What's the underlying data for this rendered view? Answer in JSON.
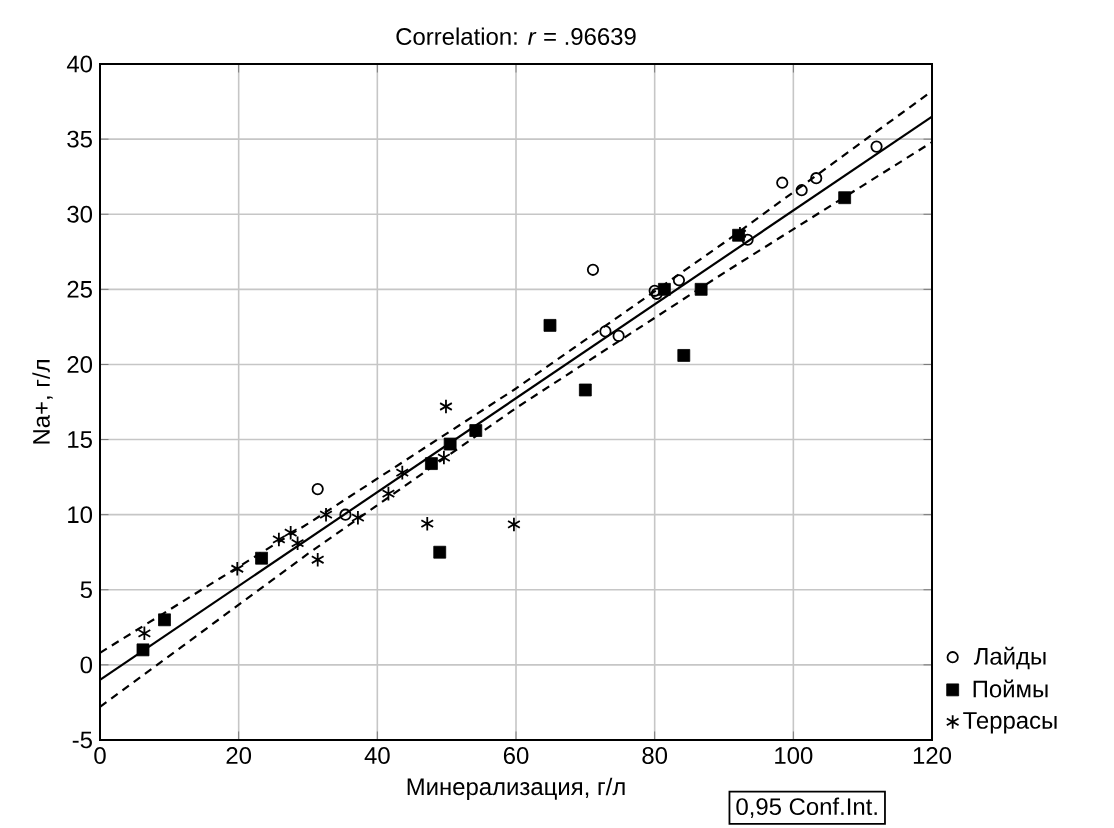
{
  "chart_data": {
    "type": "scatter",
    "title": "Correlation: *r* = .96639",
    "xlabel": "Минерализация, г/л",
    "ylabel": "Na+, г/л",
    "xlim": [
      0,
      120
    ],
    "xticks": [
      0,
      20,
      40,
      60,
      80,
      100,
      120
    ],
    "ylim": [
      -5,
      40
    ],
    "yticks": [
      -5,
      0,
      5,
      10,
      15,
      20,
      25,
      30,
      35,
      40
    ],
    "grid": true,
    "legend": "bottom right",
    "annotations": [
      "0,95 Conf.Int."
    ],
    "series": [
      {
        "name": "Лайды",
        "color": "#000000",
        "marker": "circle",
        "x": [
          31.4,
          35.4,
          71.1,
          80.0,
          80.3,
          83.5,
          72.9,
          74.8,
          98.4,
          101.2,
          103.3,
          112.0,
          93.4
        ],
        "values": [
          11.7,
          10.0,
          26.3,
          24.9,
          24.7,
          25.6,
          22.2,
          21.9,
          32.1,
          31.6,
          32.4,
          34.5,
          28.3
        ]
      },
      {
        "name": "Поймы",
        "color": "#000000",
        "marker": "square",
        "x": [
          6.2,
          9.3,
          23.3,
          49.0,
          47.8,
          50.5,
          54.2,
          64.9,
          70.0,
          84.2,
          86.7,
          81.4,
          92.1,
          107.4
        ],
        "values": [
          1.0,
          3.0,
          7.1,
          7.5,
          13.4,
          14.7,
          15.6,
          22.6,
          18.3,
          20.6,
          25.0,
          25.0,
          28.6,
          31.1
        ]
      },
      {
        "name": "Террасы",
        "color": "#000000",
        "marker": "cross",
        "x": [
          6.4,
          19.8,
          25.8,
          27.5,
          28.5,
          31.4,
          32.6,
          37.2,
          41.6,
          43.6,
          47.2,
          49.9,
          49.6,
          59.7,
          92.3
        ],
        "values": [
          2.1,
          6.4,
          8.35,
          8.8,
          8.1,
          7.0,
          10.0,
          9.8,
          11.4,
          12.8,
          9.4,
          17.2,
          13.8,
          9.35,
          28.7
        ]
      },
      {
        "type": "line",
        "color": "#000000",
        "marker": "none",
        "line_style": "solid",
        "x": [
          0,
          120
        ],
        "values": [
          -1.0,
          36.5
        ]
      },
      {
        "type": "line",
        "color": "#000000",
        "marker": "none",
        "line_style": "dashed",
        "x": [
          0,
          30,
          60,
          90,
          120
        ],
        "values": [
          0.8,
          9.4,
          18.4,
          28.1,
          38.2
        ]
      },
      {
        "type": "line",
        "color": "#000000",
        "marker": "none",
        "line_style": "dashed",
        "x": [
          0,
          30,
          60,
          90,
          120
        ],
        "values": [
          -2.8,
          7.4,
          17.1,
          26.1,
          34.8
        ]
      }
    ]
  }
}
